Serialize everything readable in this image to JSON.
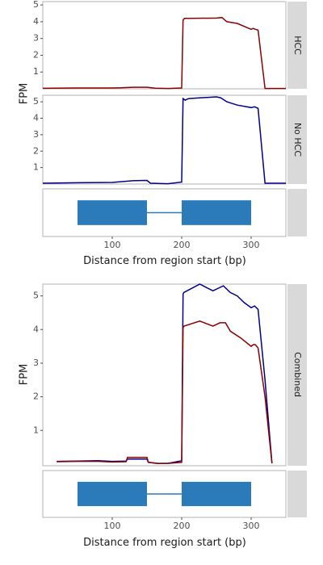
{
  "chart_data": [
    {
      "type": "line",
      "panel": "HCC",
      "strip_label": "HCC",
      "ylabel": "FPM",
      "xlim": [
        0,
        350
      ],
      "ylim": [
        0,
        5.2
      ],
      "yticks": [
        1,
        2,
        3,
        4,
        5
      ],
      "color": "#8b0000",
      "series": [
        {
          "x": [
            0,
            50,
            100,
            112,
            130,
            150,
            162,
            180,
            200,
            202,
            204,
            210,
            250,
            258,
            265,
            280,
            300,
            303,
            306,
            310,
            320,
            350
          ],
          "y": [
            0.03,
            0.05,
            0.05,
            0.06,
            0.09,
            0.09,
            0.04,
            0.02,
            0.05,
            4.1,
            4.2,
            4.2,
            4.22,
            4.25,
            4.0,
            3.9,
            3.55,
            3.6,
            3.55,
            3.5,
            0.02,
            0.02
          ]
        }
      ]
    },
    {
      "type": "line",
      "panel": "No HCC",
      "strip_label": "No HCC",
      "ylabel": "FPM",
      "xlim": [
        0,
        350
      ],
      "ylim": [
        0,
        5.4
      ],
      "yticks": [
        1,
        2,
        3,
        4,
        5
      ],
      "color": "#00008b",
      "series": [
        {
          "x": [
            0,
            50,
            100,
            130,
            150,
            155,
            180,
            200,
            202,
            205,
            210,
            250,
            256,
            265,
            280,
            300,
            305,
            310,
            320,
            350
          ],
          "y": [
            0.05,
            0.08,
            0.1,
            0.2,
            0.22,
            0.05,
            0.02,
            0.12,
            5.2,
            5.1,
            5.2,
            5.3,
            5.25,
            5.0,
            4.8,
            4.65,
            4.7,
            4.6,
            0.05,
            0.05
          ]
        }
      ]
    },
    {
      "type": "diagram",
      "panel": "gene model",
      "xlim": [
        0,
        350
      ],
      "xticks": [
        100,
        200,
        300
      ],
      "xlabel": "Distance from region start (bp)",
      "exons": [
        [
          50,
          150
        ],
        [
          200,
          300
        ]
      ],
      "intron": [
        150,
        200
      ],
      "color": "#2b7bba"
    },
    {
      "type": "line",
      "panel": "Combined",
      "strip_label": "Combined",
      "ylabel": "FPM",
      "xlim": [
        0,
        350
      ],
      "ylim": [
        -0.05,
        5.35
      ],
      "yticks": [
        1,
        2,
        3,
        4,
        5
      ],
      "series": [
        {
          "color": "#00008b",
          "x": [
            20,
            50,
            80,
            100,
            120,
            122,
            150,
            152,
            165,
            180,
            200,
            202,
            203,
            226,
            245,
            260,
            270,
            280,
            290,
            300,
            305,
            310,
            320,
            330
          ],
          "y": [
            0.08,
            0.09,
            0.1,
            0.08,
            0.09,
            0.15,
            0.15,
            0.05,
            0.02,
            0.02,
            0.1,
            5.05,
            5.1,
            5.35,
            5.15,
            5.3,
            5.1,
            5.0,
            4.8,
            4.65,
            4.7,
            4.6,
            2.5,
            0.02
          ]
        },
        {
          "color": "#8b0000",
          "x": [
            20,
            50,
            80,
            100,
            120,
            122,
            150,
            152,
            165,
            180,
            200,
            202,
            203,
            226,
            245,
            255,
            263,
            270,
            285,
            300,
            303,
            306,
            310,
            320,
            330
          ],
          "y": [
            0.07,
            0.08,
            0.08,
            0.06,
            0.07,
            0.2,
            0.2,
            0.05,
            0.02,
            0.02,
            0.05,
            4.05,
            4.1,
            4.25,
            4.1,
            4.2,
            4.2,
            3.95,
            3.75,
            3.5,
            3.55,
            3.55,
            3.45,
            2.0,
            0.02
          ]
        }
      ]
    },
    {
      "type": "diagram",
      "panel": "gene model",
      "xlim": [
        0,
        350
      ],
      "xticks": [
        100,
        200,
        300
      ],
      "xlabel": "Distance from region start (bp)",
      "exons": [
        [
          50,
          150
        ],
        [
          200,
          300
        ]
      ],
      "intron": [
        150,
        200
      ],
      "color": "#2b7bba"
    }
  ],
  "colors": {
    "strip_bg": "#d9d9d9",
    "panel_border": "#b3b3b3",
    "hcc": "#8b0000",
    "no_hcc": "#00008b",
    "exon": "#2b7bba"
  }
}
